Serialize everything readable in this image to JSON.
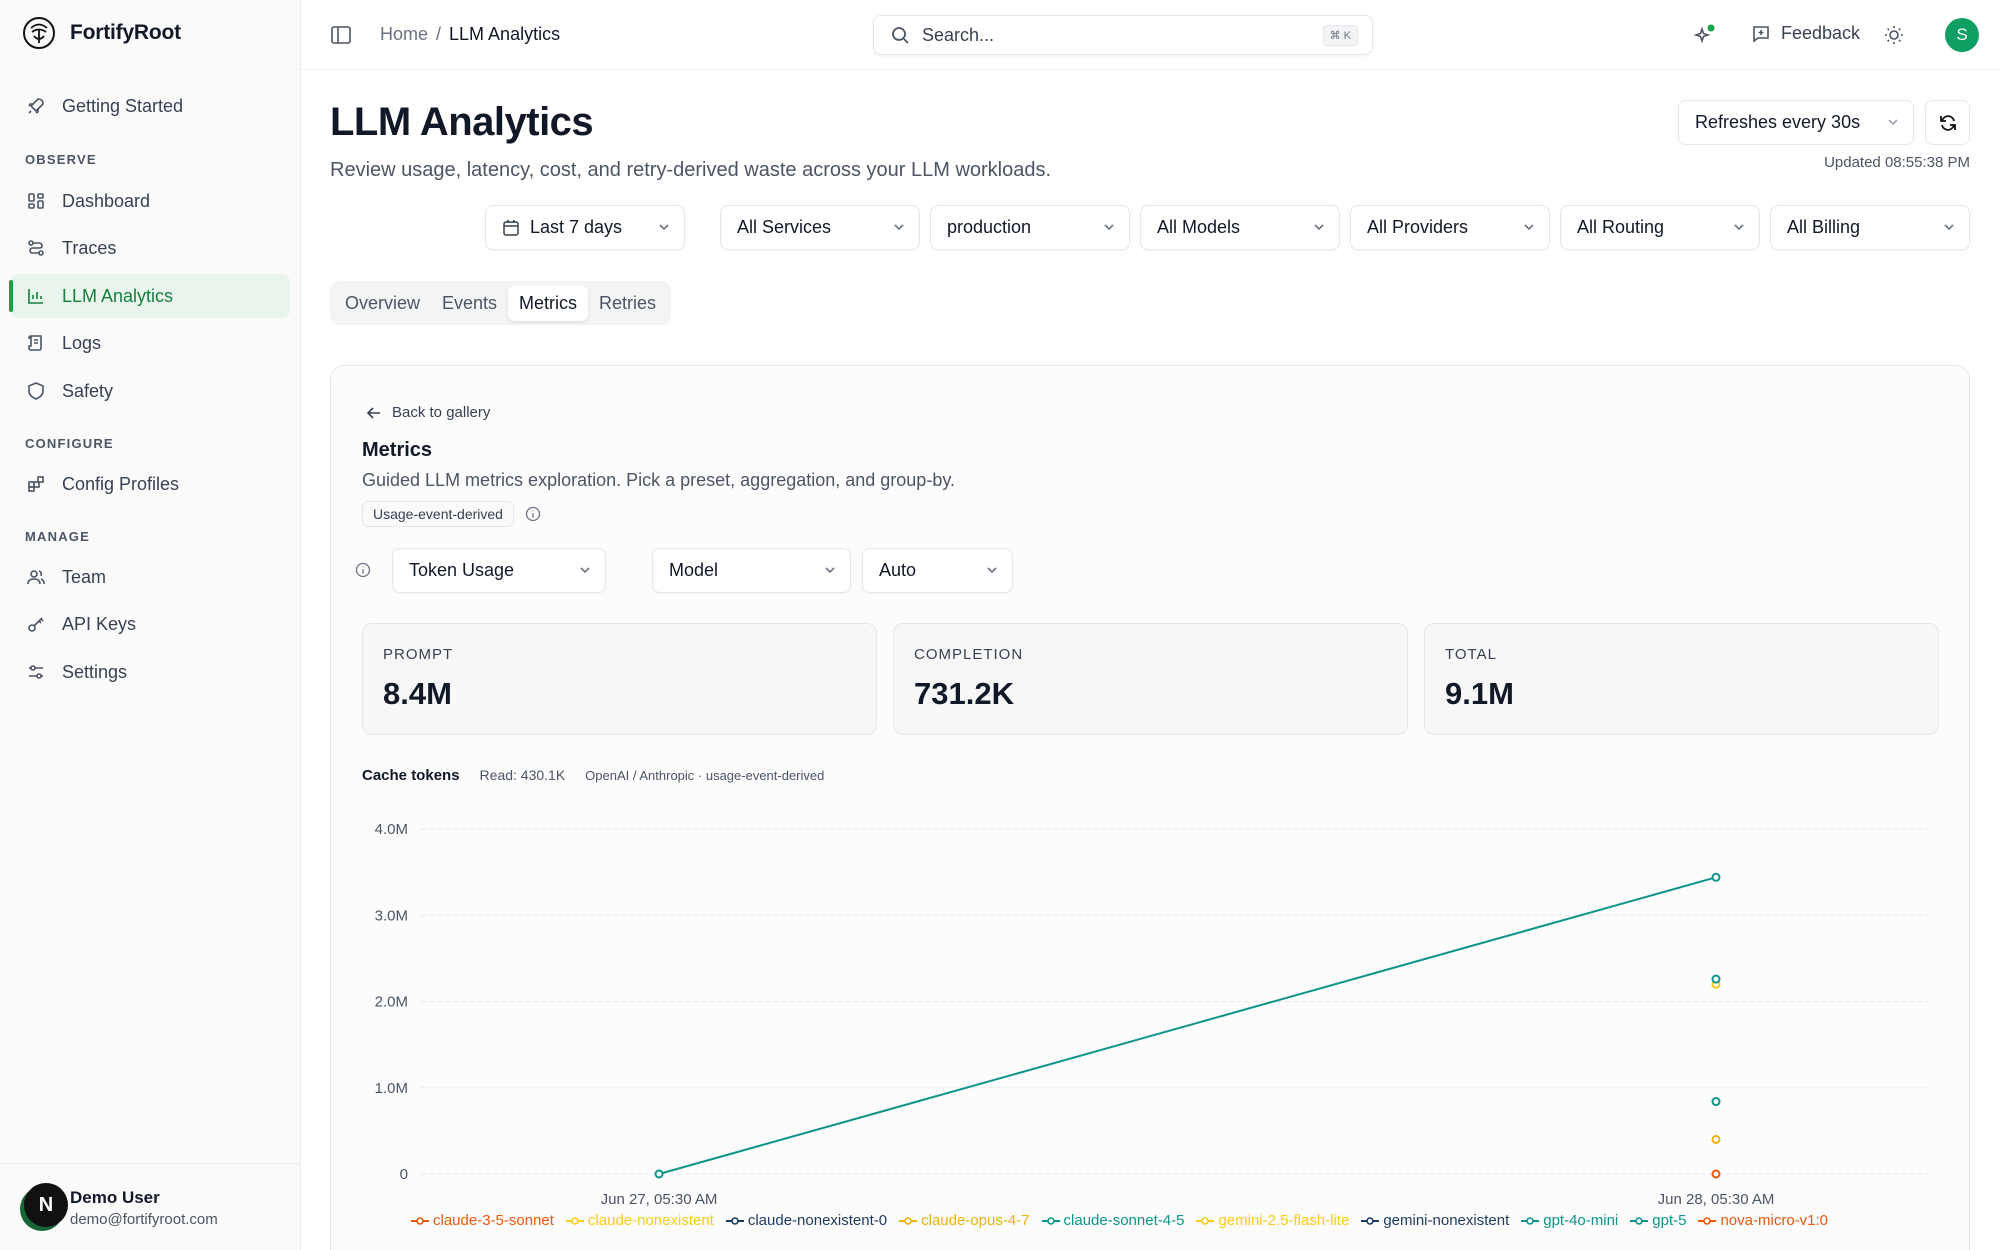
{
  "brand": {
    "name": "FortifyRoot"
  },
  "sidebar": {
    "items": [
      {
        "label": "Getting Started",
        "icon": "rocket-icon"
      },
      {
        "label": "Dashboard",
        "icon": "grid-icon"
      },
      {
        "label": "Traces",
        "icon": "route-icon"
      },
      {
        "label": "LLM Analytics",
        "icon": "chart-icon",
        "active": true
      },
      {
        "label": "Logs",
        "icon": "scroll-icon"
      },
      {
        "label": "Safety",
        "icon": "shield-icon"
      },
      {
        "label": "Config Profiles",
        "icon": "blocks-icon"
      },
      {
        "label": "Team",
        "icon": "users-icon"
      },
      {
        "label": "API Keys",
        "icon": "key-icon"
      },
      {
        "label": "Settings",
        "icon": "sliders-icon"
      }
    ],
    "sections": {
      "observe": "OBSERVE",
      "configure": "CONFIGURE",
      "manage": "MANAGE"
    },
    "user": {
      "initial": "N",
      "name": "Demo User",
      "email": "demo@fortifyroot.com"
    }
  },
  "header": {
    "breadcrumb": {
      "home": "Home",
      "separator": "/",
      "current": "LLM Analytics"
    },
    "search": {
      "placeholder": "Search...",
      "shortcut": "⌘ K"
    },
    "feedback_label": "Feedback",
    "avatar_initial": "S"
  },
  "page": {
    "title": "LLM Analytics",
    "subtitle": "Review usage, latency, cost, and retry-derived waste across your LLM workloads.",
    "refresh_label": "Refreshes every 30s",
    "updated": "Updated 08:55:38 PM"
  },
  "filters": {
    "range": "Last 7 days",
    "services": "All Services",
    "environment": "production",
    "models": "All Models",
    "providers": "All Providers",
    "routing": "All Routing",
    "billing": "All Billing"
  },
  "tabs": [
    "Overview",
    "Events",
    "Metrics",
    "Retries"
  ],
  "metrics": {
    "back_label": "Back to gallery",
    "title": "Metrics",
    "description": "Guided LLM metrics exploration. Pick a preset, aggregation, and group-by.",
    "badge": "Usage-event-derived",
    "preset": "Token Usage",
    "group_by": "Model",
    "aggregation": "Auto",
    "stats": [
      {
        "label": "PROMPT",
        "value": "8.4M"
      },
      {
        "label": "COMPLETION",
        "value": "731.2K"
      },
      {
        "label": "TOTAL",
        "value": "9.1M"
      }
    ],
    "cache": {
      "title": "Cache tokens",
      "read": "Read: 430.1K",
      "source": "OpenAI / Anthropic · usage-event-derived"
    }
  },
  "colors": {
    "accent": "#16a34a",
    "teal": "#0d9488",
    "orange": "#ea580c",
    "amber": "#eab308",
    "navy": "#1e3a5f"
  },
  "chart_data": {
    "type": "line",
    "x": [
      "Jun 27, 05:30 AM",
      "Jun 28, 05:30 AM"
    ],
    "yticks": [
      "0",
      "1.0M",
      "2.0M",
      "3.0M",
      "4.0M"
    ],
    "ylim": [
      0,
      4000000
    ],
    "grid": true,
    "legend_position": "bottom",
    "series": [
      {
        "name": "claude-3-5-sonnet",
        "color": "#ea580c",
        "values": [
          null,
          0
        ]
      },
      {
        "name": "claude-nonexistent",
        "color": "#facc15",
        "values": [
          null,
          null
        ]
      },
      {
        "name": "claude-nonexistent-0",
        "color": "#1e3a5f",
        "values": [
          null,
          null
        ]
      },
      {
        "name": "claude-opus-4-7",
        "color": "#eab308",
        "values": [
          null,
          400000
        ]
      },
      {
        "name": "claude-sonnet-4-5",
        "color": "#0d9488",
        "values": [
          null,
          840000
        ]
      },
      {
        "name": "gemini-2.5-flash-lite",
        "color": "#facc15",
        "values": [
          null,
          2200000
        ]
      },
      {
        "name": "gemini-nonexistent",
        "color": "#1e3a5f",
        "values": [
          null,
          null
        ]
      },
      {
        "name": "gpt-4o-mini",
        "color": "#0d9488",
        "values": [
          null,
          2260000
        ]
      },
      {
        "name": "gpt-5",
        "color": "#0d9488",
        "values": [
          0,
          3440000
        ]
      },
      {
        "name": "nova-micro-v1:0",
        "color": "#ea580c",
        "values": [
          null,
          null
        ]
      }
    ]
  }
}
